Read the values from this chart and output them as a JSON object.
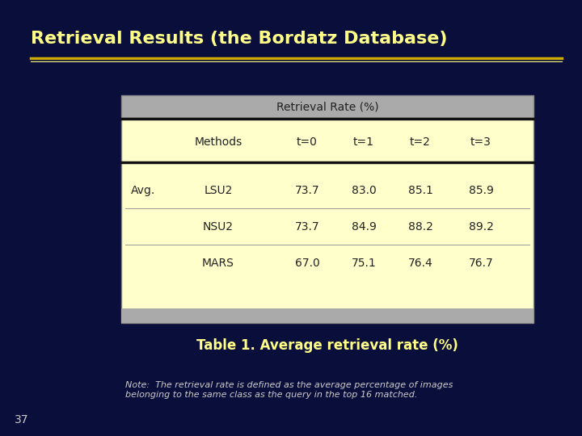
{
  "title": "Retrieval Results (the Bordatz Database)",
  "bg_color": "#0a0e3a",
  "title_color": "#ffff88",
  "title_fontsize": 16,
  "table_header": "Retrieval Rate (%)",
  "col_headers": [
    "Methods",
    "t=0",
    "t=1",
    "t=2",
    "t=3"
  ],
  "row_label": "Avg.",
  "rows": [
    [
      "LSU2",
      "73.7",
      "83.0",
      "85.1",
      "85.9"
    ],
    [
      "NSU2",
      "73.7",
      "84.9",
      "88.2",
      "89.2"
    ],
    [
      "MARS",
      "67.0",
      "75.1",
      "76.4",
      "76.7"
    ]
  ],
  "table_bg": "#ffffcc",
  "table_text_color": "#222222",
  "table_header_bg": "#aaaaaa",
  "caption": "Table 1. Average retrieval rate (%)",
  "caption_color": "#ffff88",
  "note_text": "Note:  The retrieval rate is defined as the average percentage of images\nbelonging to the same class as the query in the top 16 matched.",
  "note_color": "#cccccc",
  "slide_num": "37",
  "slide_num_color": "#cccccc",
  "separator_color": "#ccaa00",
  "separator2_color": "#ffff88"
}
